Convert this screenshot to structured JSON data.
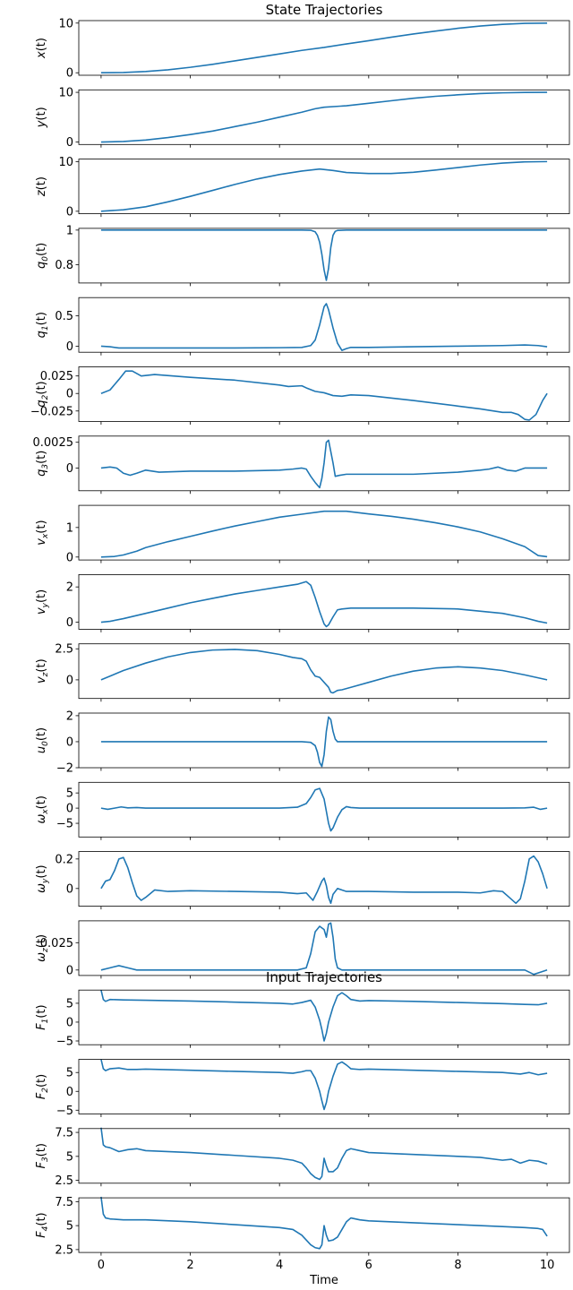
{
  "titles": {
    "states": "State Trajectories",
    "inputs": "Input Trajectories"
  },
  "xlabel": "Time",
  "colors": {
    "line": "#1f77b4",
    "axis": "#000000",
    "background": "#ffffff"
  },
  "chart_data": [
    {
      "type": "line",
      "ylabel": "x(t)",
      "xlim": [
        -0.5,
        10.5
      ],
      "ylim": [
        -0.5,
        10.5
      ],
      "yticks": [
        0,
        10
      ],
      "x": [
        0,
        0.5,
        1,
        1.5,
        2,
        2.5,
        3,
        3.5,
        4,
        4.5,
        5,
        5.5,
        6,
        6.5,
        7,
        7.5,
        8,
        8.5,
        9,
        9.5,
        10
      ],
      "y": [
        0,
        0.05,
        0.25,
        0.6,
        1.1,
        1.7,
        2.4,
        3.1,
        3.8,
        4.5,
        5.1,
        5.8,
        6.45,
        7.15,
        7.8,
        8.4,
        8.95,
        9.4,
        9.75,
        9.95,
        10
      ]
    },
    {
      "type": "line",
      "ylabel": "y(t)",
      "xlim": [
        -0.5,
        10.5
      ],
      "ylim": [
        -0.5,
        10.5
      ],
      "yticks": [
        0,
        10
      ],
      "x": [
        0,
        0.5,
        1,
        1.5,
        2,
        2.5,
        3,
        3.5,
        4,
        4.5,
        4.8,
        5,
        5.5,
        6,
        6.5,
        7,
        7.5,
        8,
        8.5,
        9,
        9.5,
        10
      ],
      "y": [
        0,
        0.1,
        0.4,
        0.9,
        1.5,
        2.2,
        3.1,
        4,
        5,
        6,
        6.7,
        7,
        7.3,
        7.8,
        8.3,
        8.8,
        9.2,
        9.5,
        9.75,
        9.9,
        9.98,
        10
      ]
    },
    {
      "type": "line",
      "ylabel": "z(t)",
      "xlim": [
        -0.5,
        10.5
      ],
      "ylim": [
        -0.5,
        10.5
      ],
      "yticks": [
        0,
        10
      ],
      "x": [
        0,
        0.5,
        1,
        1.5,
        2,
        2.5,
        3,
        3.5,
        4,
        4.5,
        4.9,
        5.2,
        5.5,
        6,
        6.5,
        7,
        7.5,
        8,
        8.5,
        9,
        9.5,
        10
      ],
      "y": [
        0,
        0.3,
        0.9,
        1.9,
        3,
        4.2,
        5.4,
        6.5,
        7.4,
        8.1,
        8.5,
        8.2,
        7.8,
        7.6,
        7.6,
        7.85,
        8.3,
        8.8,
        9.3,
        9.7,
        9.95,
        10
      ]
    },
    {
      "type": "line",
      "ylabel": "q0(t)",
      "xlim": [
        -0.5,
        10.5
      ],
      "ylim": [
        0.695,
        1.01
      ],
      "yticks": [
        0.8,
        1.0
      ],
      "x": [
        0,
        4.5,
        4.7,
        4.8,
        4.85,
        4.9,
        4.95,
        5,
        5.05,
        5.1,
        5.15,
        5.2,
        5.25,
        5.3,
        5.5,
        10
      ],
      "y": [
        1,
        1,
        0.999,
        0.99,
        0.97,
        0.93,
        0.86,
        0.77,
        0.71,
        0.78,
        0.9,
        0.97,
        0.993,
        0.998,
        1,
        1
      ]
    },
    {
      "type": "line",
      "ylabel": "q1(t)",
      "xlim": [
        -0.5,
        10.5
      ],
      "ylim": [
        -0.1,
        0.8
      ],
      "yticks": [
        0,
        0.5
      ],
      "x": [
        0,
        0.2,
        0.4,
        0.6,
        1,
        2,
        3,
        4,
        4.5,
        4.7,
        4.8,
        4.9,
        5,
        5.05,
        5.1,
        5.2,
        5.3,
        5.4,
        5.5,
        5.6,
        6,
        7,
        8,
        9,
        9.5,
        9.8,
        10
      ],
      "y": [
        0,
        -0.01,
        -0.03,
        -0.03,
        -0.03,
        -0.03,
        -0.03,
        -0.025,
        -0.02,
        0.01,
        0.1,
        0.35,
        0.65,
        0.7,
        0.6,
        0.3,
        0.05,
        -0.07,
        -0.04,
        -0.02,
        -0.02,
        -0.01,
        0,
        0.01,
        0.02,
        0.01,
        -0.01
      ]
    },
    {
      "type": "line",
      "ylabel": "q2(t)",
      "xlim": [
        -0.5,
        10.5
      ],
      "ylim": [
        -0.04,
        0.038
      ],
      "yticks": [
        -0.025,
        0,
        0.025
      ],
      "x": [
        0,
        0.2,
        0.4,
        0.55,
        0.7,
        0.9,
        1.2,
        2,
        3,
        4,
        4.2,
        4.5,
        4.6,
        4.8,
        5,
        5.2,
        5.4,
        5.6,
        6,
        7,
        8,
        8.5,
        9,
        9.2,
        9.35,
        9.5,
        9.6,
        9.75,
        9.9,
        10
      ],
      "y": [
        0,
        0.005,
        0.02,
        0.032,
        0.032,
        0.025,
        0.027,
        0.023,
        0.019,
        0.012,
        0.01,
        0.011,
        0.008,
        0.003,
        0.001,
        -0.003,
        -0.004,
        -0.002,
        -0.003,
        -0.01,
        -0.018,
        -0.022,
        -0.027,
        -0.027,
        -0.03,
        -0.037,
        -0.038,
        -0.03,
        -0.01,
        0
      ]
    },
    {
      "type": "line",
      "ylabel": "q3(t)",
      "xlim": [
        -0.5,
        10.5
      ],
      "ylim": [
        -0.0022,
        0.0031
      ],
      "yticks": [
        0,
        0.0025
      ],
      "x": [
        0,
        0.2,
        0.35,
        0.5,
        0.65,
        0.8,
        1,
        1.3,
        2,
        3,
        4,
        4.3,
        4.5,
        4.6,
        4.7,
        4.8,
        4.9,
        4.95,
        5,
        5.05,
        5.1,
        5.2,
        5.25,
        5.35,
        5.5,
        6,
        7,
        8,
        8.5,
        8.7,
        8.9,
        9.1,
        9.3,
        9.5,
        9.7,
        10
      ],
      "y": [
        0,
        0.0001,
        0,
        -0.0005,
        -0.0007,
        -0.0005,
        -0.0002,
        -0.0004,
        -0.0003,
        -0.0003,
        -0.0002,
        -0.0001,
        0,
        -0.0001,
        -0.0008,
        -0.0014,
        -0.0019,
        -0.001,
        0.0005,
        0.0025,
        0.0027,
        0.0005,
        -0.0008,
        -0.0007,
        -0.0006,
        -0.0006,
        -0.0006,
        -0.0004,
        -0.0002,
        -0.0001,
        0.0001,
        -0.0002,
        -0.0003,
        0,
        0,
        0
      ]
    },
    {
      "type": "line",
      "ylabel": "vx(t)",
      "xlim": [
        -0.5,
        10.5
      ],
      "ylim": [
        -0.1,
        1.75
      ],
      "yticks": [
        0,
        1
      ],
      "x": [
        0,
        0.3,
        0.5,
        0.8,
        1,
        1.5,
        2,
        2.5,
        3,
        3.5,
        4,
        4.5,
        5,
        5.5,
        6,
        6.5,
        7,
        7.5,
        8,
        8.5,
        9,
        9.5,
        9.8,
        10
      ],
      "y": [
        0,
        0.02,
        0.07,
        0.2,
        0.32,
        0.52,
        0.7,
        0.88,
        1.05,
        1.2,
        1.35,
        1.45,
        1.55,
        1.55,
        1.46,
        1.38,
        1.28,
        1.16,
        1.02,
        0.85,
        0.62,
        0.35,
        0.05,
        0.01
      ]
    },
    {
      "type": "line",
      "ylabel": "vy(t)",
      "xlim": [
        -0.5,
        10.5
      ],
      "ylim": [
        -0.4,
        2.7
      ],
      "yticks": [
        0,
        2
      ],
      "x": [
        0,
        0.2,
        0.5,
        1,
        1.5,
        2,
        2.5,
        3,
        3.5,
        4,
        4.4,
        4.6,
        4.7,
        4.8,
        4.9,
        5,
        5.05,
        5.1,
        5.2,
        5.3,
        5.4,
        5.6,
        6,
        7,
        8,
        9,
        9.5,
        9.8,
        10
      ],
      "y": [
        0,
        0.05,
        0.2,
        0.5,
        0.8,
        1.1,
        1.35,
        1.6,
        1.8,
        2,
        2.15,
        2.3,
        2.1,
        1.4,
        0.6,
        -0.1,
        -0.25,
        -0.15,
        0.3,
        0.7,
        0.75,
        0.8,
        0.8,
        0.8,
        0.75,
        0.5,
        0.25,
        0.05,
        -0.05
      ]
    },
    {
      "type": "line",
      "ylabel": "vz(t)",
      "xlim": [
        -0.5,
        10.5
      ],
      "ylim": [
        -1.5,
        2.9
      ],
      "yticks": [
        0,
        2.5
      ],
      "x": [
        0,
        0.5,
        1,
        1.5,
        2,
        2.5,
        3,
        3.5,
        4,
        4.3,
        4.5,
        4.6,
        4.7,
        4.8,
        4.9,
        5,
        5.1,
        5.15,
        5.2,
        5.3,
        5.4,
        5.6,
        6,
        6.5,
        7,
        7.5,
        8,
        8.5,
        9,
        9.5,
        10
      ],
      "y": [
        0,
        0.75,
        1.35,
        1.85,
        2.2,
        2.4,
        2.45,
        2.35,
        2.05,
        1.8,
        1.7,
        1.5,
        0.8,
        0.3,
        0.2,
        -0.2,
        -0.6,
        -1,
        -1.05,
        -0.85,
        -0.8,
        -0.6,
        -0.2,
        0.3,
        0.7,
        0.95,
        1.05,
        0.95,
        0.75,
        0.4,
        0
      ]
    },
    {
      "type": "line",
      "ylabel": "u0(t)",
      "xlim": [
        -0.5,
        10.5
      ],
      "ylim": [
        -2,
        2.2
      ],
      "yticks": [
        -2,
        0,
        2
      ],
      "x": [
        0,
        4.5,
        4.7,
        4.8,
        4.85,
        4.9,
        4.95,
        5,
        5.05,
        5.1,
        5.15,
        5.2,
        5.25,
        5.3,
        5.4,
        10
      ],
      "y": [
        0,
        0,
        -0.05,
        -0.3,
        -0.8,
        -1.6,
        -1.9,
        -1,
        0.8,
        1.9,
        1.7,
        0.8,
        0.2,
        0,
        0,
        0
      ]
    },
    {
      "type": "line",
      "ylabel": "ωx(t)",
      "xlim": [
        -0.5,
        10.5
      ],
      "ylim": [
        -9.5,
        8.5
      ],
      "yticks": [
        -5,
        0,
        5
      ],
      "x": [
        0,
        0.15,
        0.3,
        0.45,
        0.6,
        0.8,
        1,
        2,
        3,
        4,
        4.4,
        4.6,
        4.7,
        4.8,
        4.9,
        5,
        5.05,
        5.1,
        5.15,
        5.2,
        5.3,
        5.4,
        5.5,
        5.6,
        5.8,
        6,
        7,
        8,
        9,
        9.5,
        9.7,
        9.85,
        10
      ],
      "y": [
        0,
        -0.4,
        0,
        0.4,
        0.1,
        0.2,
        0,
        0,
        0,
        0,
        0.3,
        1.5,
        3.5,
        6,
        6.5,
        3,
        -1,
        -5,
        -7.5,
        -6.5,
        -3,
        -0.5,
        0.5,
        0.2,
        0,
        0,
        0,
        0,
        0,
        0.1,
        0.3,
        -0.4,
        0
      ]
    },
    {
      "type": "line",
      "ylabel": "ωy(t)",
      "xlim": [
        -0.5,
        10.5
      ],
      "ylim": [
        -0.12,
        0.25
      ],
      "yticks": [
        0,
        0.2
      ],
      "x": [
        0,
        0.1,
        0.2,
        0.3,
        0.4,
        0.5,
        0.6,
        0.7,
        0.8,
        0.9,
        1,
        1.2,
        1.5,
        2,
        3,
        4,
        4.4,
        4.6,
        4.75,
        4.85,
        4.95,
        5,
        5.05,
        5.1,
        5.15,
        5.2,
        5.3,
        5.4,
        5.5,
        5.7,
        6,
        7,
        8,
        8.5,
        8.8,
        9,
        9.15,
        9.3,
        9.4,
        9.5,
        9.6,
        9.7,
        9.8,
        9.9,
        10
      ],
      "y": [
        0,
        0.05,
        0.06,
        0.12,
        0.2,
        0.21,
        0.14,
        0.04,
        -0.05,
        -0.08,
        -0.06,
        -0.01,
        -0.02,
        -0.015,
        -0.02,
        -0.025,
        -0.035,
        -0.03,
        -0.08,
        -0.02,
        0.05,
        0.07,
        0.02,
        -0.06,
        -0.1,
        -0.04,
        0,
        -0.01,
        -0.02,
        -0.02,
        -0.02,
        -0.025,
        -0.025,
        -0.03,
        -0.015,
        -0.02,
        -0.06,
        -0.1,
        -0.07,
        0.05,
        0.2,
        0.22,
        0.18,
        0.1,
        0
      ]
    },
    {
      "type": "line",
      "ylabel": "ωz(t)",
      "xlim": [
        -0.5,
        10.5
      ],
      "ylim": [
        -0.005,
        0.045
      ],
      "yticks": [
        0,
        0.025
      ],
      "x": [
        0,
        0.2,
        0.4,
        0.6,
        0.8,
        1,
        2,
        3,
        4,
        4.4,
        4.6,
        4.7,
        4.8,
        4.9,
        5,
        5.05,
        5.1,
        5.15,
        5.2,
        5.25,
        5.3,
        5.4,
        5.6,
        6,
        8,
        9,
        9.5,
        9.7,
        9.85,
        10
      ],
      "y": [
        0,
        0.002,
        0.004,
        0.002,
        0,
        0,
        0,
        0,
        0,
        0,
        0.002,
        0.015,
        0.035,
        0.04,
        0.037,
        0.03,
        0.042,
        0.043,
        0.03,
        0.01,
        0.002,
        0,
        0,
        0,
        0,
        0,
        0,
        -0.004,
        -0.002,
        0
      ]
    },
    {
      "type": "line",
      "ylabel": "F1(t)",
      "xlim": [
        -0.5,
        10.5
      ],
      "ylim": [
        -6,
        8.5
      ],
      "yticks": [
        -5,
        0,
        5
      ],
      "x": [
        0,
        0.05,
        0.1,
        0.2,
        0.5,
        1,
        2,
        3,
        4,
        4.3,
        4.5,
        4.6,
        4.7,
        4.8,
        4.9,
        4.95,
        5,
        5.05,
        5.1,
        5.2,
        5.3,
        5.4,
        5.5,
        5.6,
        5.8,
        6,
        7,
        8,
        9,
        9.5,
        9.8,
        10
      ],
      "y": [
        8.5,
        6,
        5.5,
        6,
        5.9,
        5.8,
        5.6,
        5.3,
        5,
        4.8,
        5.2,
        5.5,
        5.8,
        4,
        0.5,
        -2,
        -5,
        -3,
        0,
        4,
        7,
        7.8,
        7,
        6,
        5.6,
        5.7,
        5.5,
        5.2,
        4.9,
        4.7,
        4.6,
        5
      ]
    },
    {
      "type": "line",
      "ylabel": "F2(t)",
      "xlim": [
        -0.5,
        10.5
      ],
      "ylim": [
        -6,
        8.5
      ],
      "yticks": [
        -5,
        0,
        5
      ],
      "x": [
        0,
        0.05,
        0.1,
        0.2,
        0.4,
        0.6,
        0.8,
        1,
        2,
        3,
        4,
        4.3,
        4.5,
        4.6,
        4.7,
        4.8,
        4.9,
        4.95,
        5,
        5.05,
        5.1,
        5.2,
        5.3,
        5.4,
        5.5,
        5.6,
        5.8,
        6,
        7,
        8,
        9,
        9.4,
        9.6,
        9.8,
        10
      ],
      "y": [
        8.5,
        6,
        5.5,
        6,
        6.2,
        5.8,
        5.8,
        5.9,
        5.6,
        5.3,
        5,
        4.8,
        5.2,
        5.5,
        5.5,
        3.5,
        0,
        -2.5,
        -4.8,
        -3,
        0,
        4,
        7.2,
        7.8,
        7,
        6,
        5.8,
        5.9,
        5.6,
        5.3,
        5,
        4.6,
        5,
        4.4,
        4.8
      ]
    },
    {
      "type": "line",
      "ylabel": "F3(t)",
      "xlim": [
        -0.5,
        10.5
      ],
      "ylim": [
        2.2,
        7.9
      ],
      "yticks": [
        2.5,
        5.0,
        7.5
      ],
      "x": [
        0,
        0.05,
        0.1,
        0.2,
        0.4,
        0.6,
        0.8,
        1,
        2,
        3,
        4,
        4.3,
        4.5,
        4.6,
        4.7,
        4.8,
        4.9,
        4.95,
        5,
        5.05,
        5.1,
        5.2,
        5.3,
        5.4,
        5.5,
        5.6,
        5.8,
        6,
        7,
        8,
        8.5,
        9,
        9.2,
        9.4,
        9.6,
        9.8,
        10
      ],
      "y": [
        8,
        6.2,
        6,
        5.9,
        5.5,
        5.7,
        5.8,
        5.6,
        5.4,
        5.1,
        4.8,
        4.6,
        4.3,
        3.8,
        3.2,
        2.8,
        2.6,
        2.9,
        4.8,
        4,
        3.4,
        3.4,
        3.8,
        4.8,
        5.6,
        5.8,
        5.6,
        5.4,
        5.2,
        5,
        4.9,
        4.6,
        4.7,
        4.3,
        4.6,
        4.5,
        4.2
      ]
    },
    {
      "type": "line",
      "ylabel": "F4(t)",
      "xlim": [
        -0.5,
        10.5
      ],
      "ylim": [
        2.2,
        7.9
      ],
      "yticks": [
        2.5,
        5.0,
        7.5
      ],
      "x": [
        0,
        0.05,
        0.1,
        0.2,
        0.5,
        1,
        2,
        3,
        4,
        4.3,
        4.5,
        4.6,
        4.7,
        4.8,
        4.9,
        4.95,
        5,
        5.05,
        5.1,
        5.2,
        5.3,
        5.4,
        5.5,
        5.6,
        5.8,
        6,
        7,
        8,
        9,
        9.5,
        9.8,
        9.9,
        10
      ],
      "y": [
        8,
        6.2,
        5.8,
        5.7,
        5.6,
        5.6,
        5.4,
        5.1,
        4.8,
        4.6,
        4,
        3.5,
        3,
        2.7,
        2.6,
        3,
        5,
        4,
        3.4,
        3.5,
        3.8,
        4.6,
        5.4,
        5.8,
        5.6,
        5.5,
        5.3,
        5.1,
        4.9,
        4.8,
        4.7,
        4.6,
        3.9
      ]
    }
  ]
}
